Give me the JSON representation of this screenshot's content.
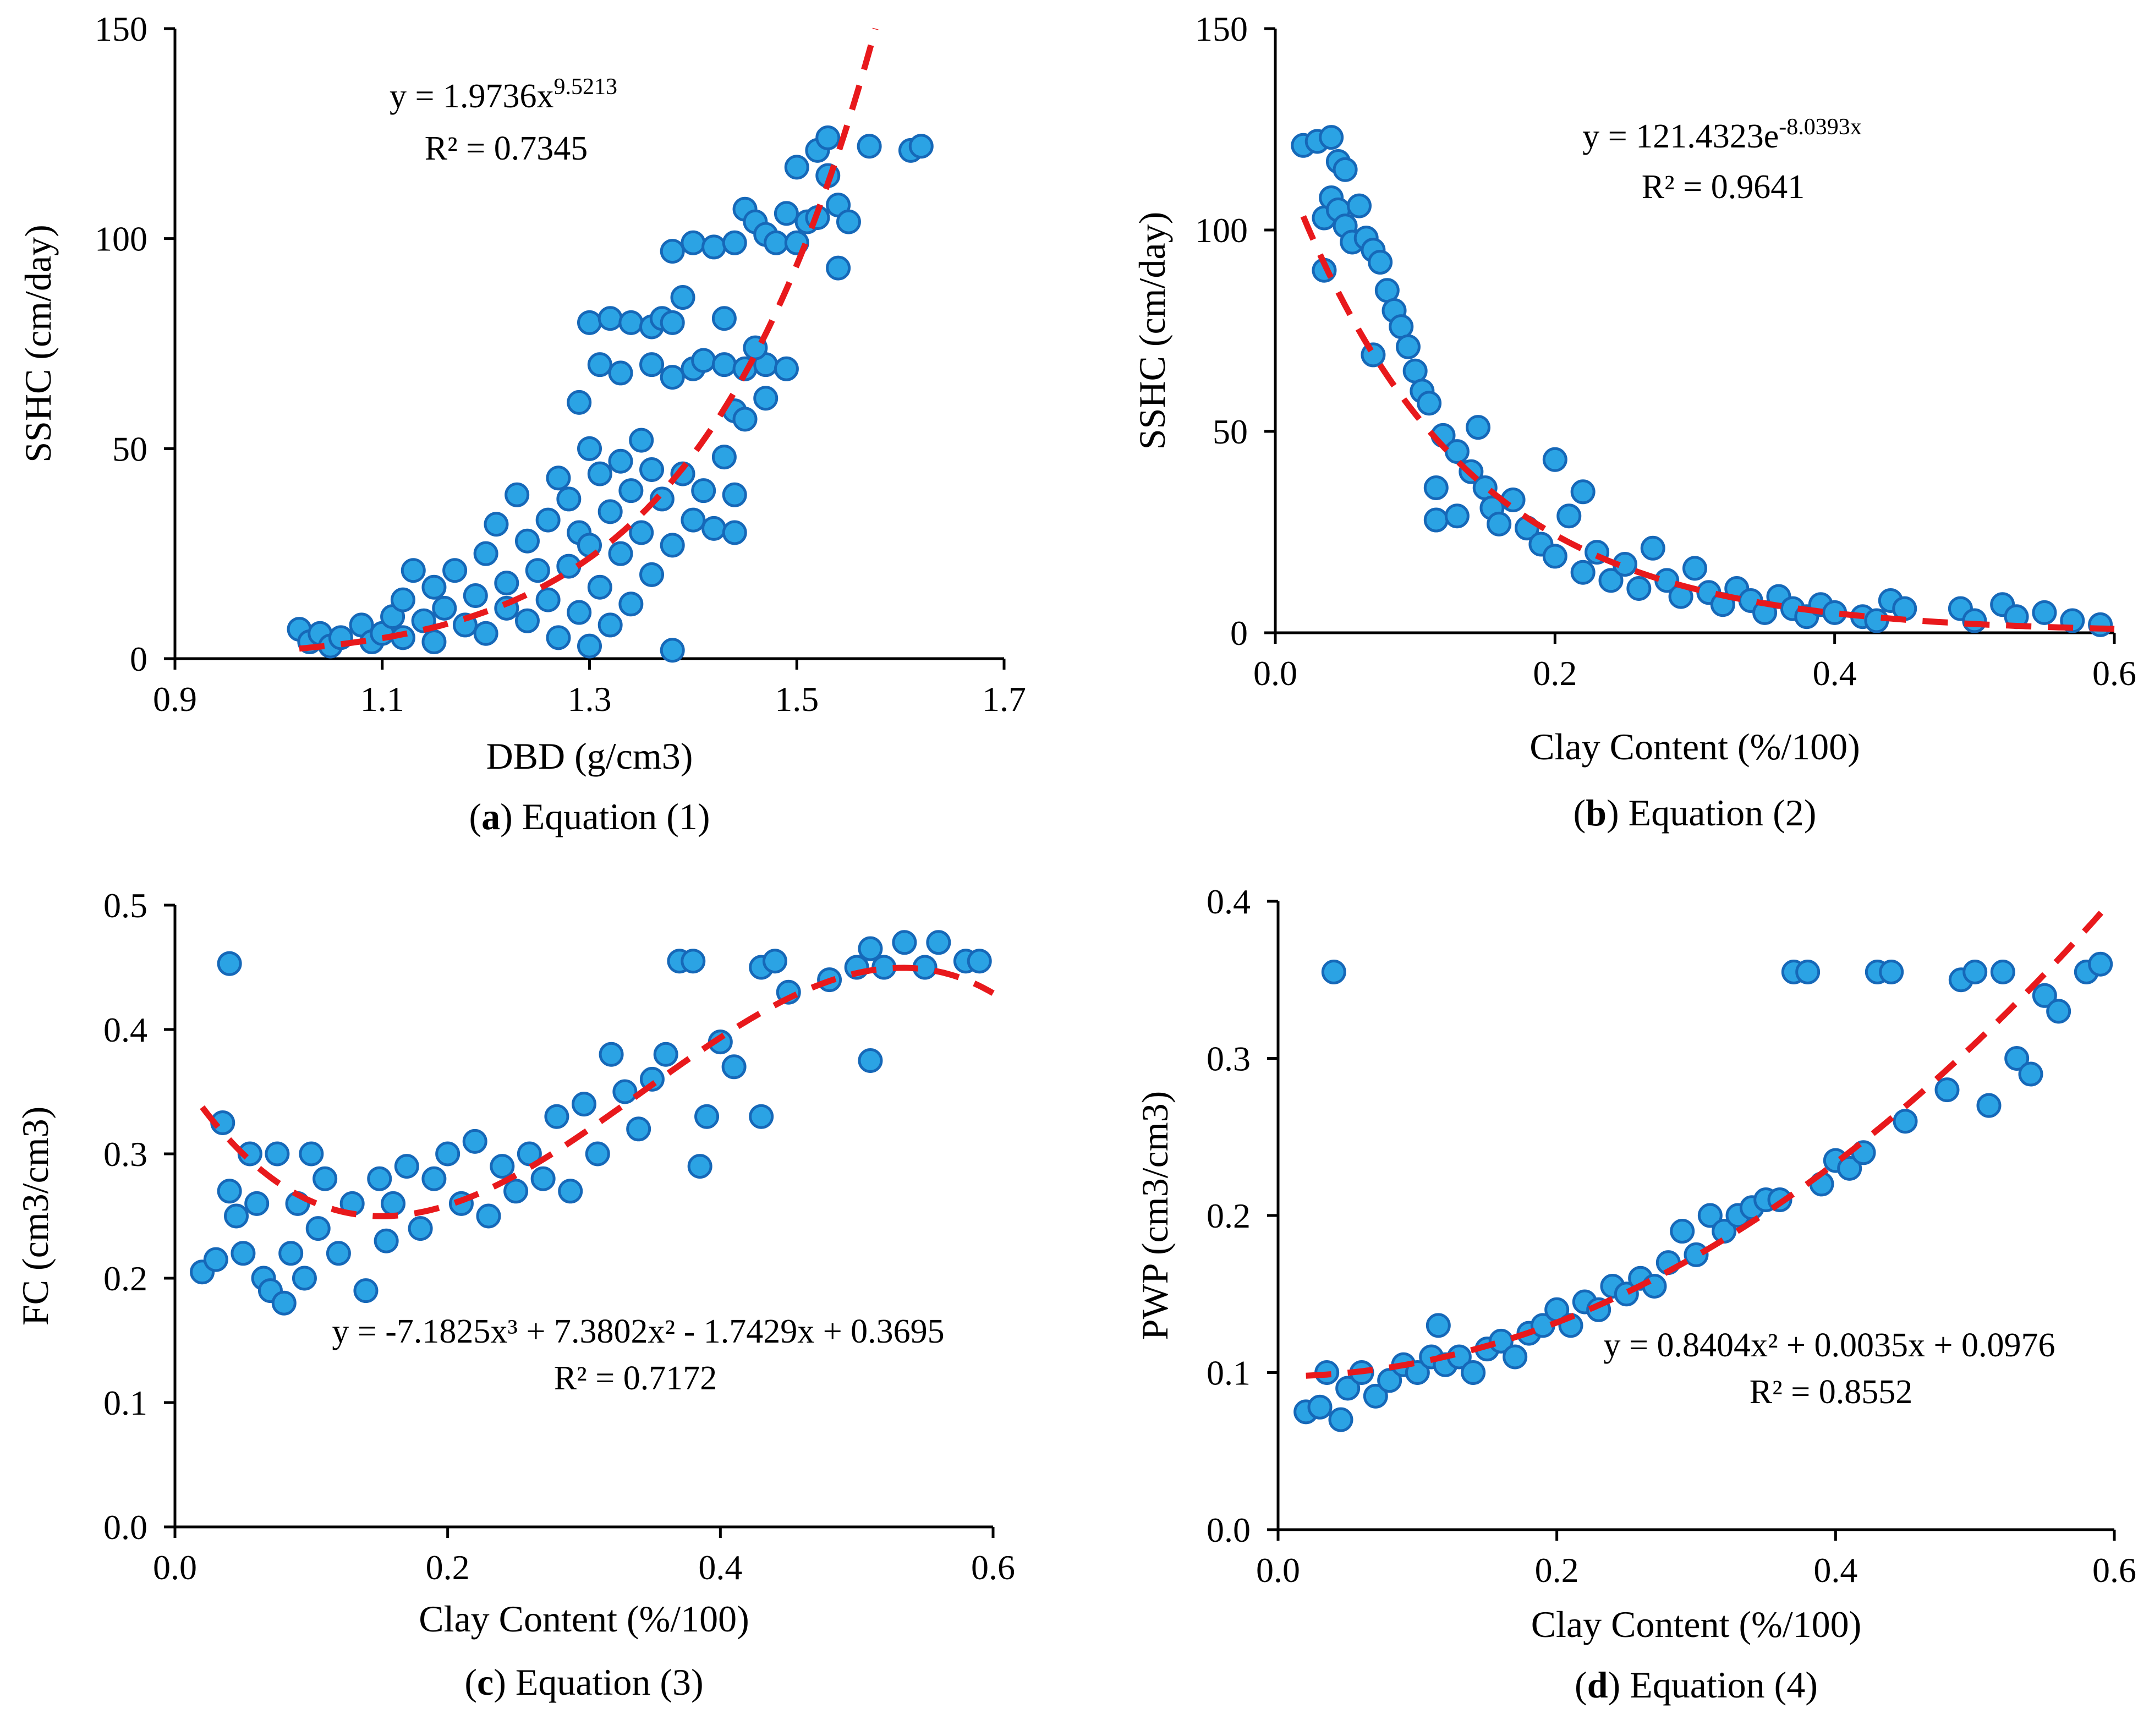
{
  "colors": {
    "point_fill": "#2ba3e4",
    "point_stroke": "#1668b8",
    "trendline": "#e8191c",
    "axis": "#000000"
  },
  "chart_data": [
    {
      "id": "a",
      "type": "scatter",
      "caption_letter": "a",
      "caption_text": ") Equation (1)",
      "xlabel": "DBD (g/cm3)",
      "ylabel": "SSHC (cm/day)",
      "xlim": [
        0.9,
        1.7
      ],
      "ylim": [
        0,
        150
      ],
      "xticks": [
        "0.9",
        "1.1",
        "1.3",
        "1.5",
        "1.7"
      ],
      "yticks": [
        "0",
        "50",
        "100",
        "150"
      ],
      "equation_base": "y = 1.9736x",
      "equation_sup": "9.5213",
      "r2": "R² = 0.7345",
      "trend": {
        "model": "power",
        "a": 1.9736,
        "b": 9.5213,
        "x_range": [
          1.02,
          1.58
        ]
      },
      "points": [
        [
          1.02,
          7
        ],
        [
          1.03,
          4
        ],
        [
          1.04,
          6
        ],
        [
          1.05,
          3
        ],
        [
          1.06,
          5
        ],
        [
          1.08,
          8
        ],
        [
          1.09,
          4
        ],
        [
          1.1,
          6
        ],
        [
          1.11,
          10
        ],
        [
          1.12,
          14
        ],
        [
          1.12,
          5
        ],
        [
          1.13,
          21
        ],
        [
          1.14,
          9
        ],
        [
          1.15,
          17
        ],
        [
          1.15,
          4
        ],
        [
          1.16,
          12
        ],
        [
          1.17,
          21
        ],
        [
          1.18,
          8
        ],
        [
          1.19,
          15
        ],
        [
          1.2,
          25
        ],
        [
          1.2,
          6
        ],
        [
          1.21,
          32
        ],
        [
          1.22,
          18
        ],
        [
          1.22,
          12
        ],
        [
          1.23,
          39
        ],
        [
          1.24,
          28
        ],
        [
          1.24,
          9
        ],
        [
          1.25,
          21
        ],
        [
          1.26,
          33
        ],
        [
          1.26,
          14
        ],
        [
          1.27,
          43
        ],
        [
          1.27,
          5
        ],
        [
          1.28,
          38
        ],
        [
          1.28,
          22
        ],
        [
          1.29,
          30
        ],
        [
          1.29,
          11
        ],
        [
          1.29,
          61
        ],
        [
          1.3,
          50
        ],
        [
          1.3,
          27
        ],
        [
          1.3,
          3
        ],
        [
          1.31,
          44
        ],
        [
          1.31,
          17
        ],
        [
          1.32,
          35
        ],
        [
          1.32,
          8
        ],
        [
          1.33,
          47
        ],
        [
          1.33,
          25
        ],
        [
          1.34,
          40
        ],
        [
          1.34,
          13
        ],
        [
          1.35,
          52
        ],
        [
          1.35,
          30
        ],
        [
          1.36,
          45
        ],
        [
          1.36,
          20
        ],
        [
          1.37,
          38
        ],
        [
          1.38,
          27
        ],
        [
          1.38,
          2
        ],
        [
          1.39,
          44
        ],
        [
          1.4,
          33
        ],
        [
          1.41,
          40
        ],
        [
          1.42,
          31
        ],
        [
          1.43,
          48
        ],
        [
          1.44,
          39
        ],
        [
          1.44,
          30
        ],
        [
          1.3,
          80
        ],
        [
          1.32,
          81
        ],
        [
          1.34,
          80
        ],
        [
          1.36,
          79
        ],
        [
          1.37,
          81
        ],
        [
          1.38,
          80
        ],
        [
          1.39,
          86
        ],
        [
          1.31,
          70
        ],
        [
          1.33,
          68
        ],
        [
          1.36,
          70
        ],
        [
          1.38,
          67
        ],
        [
          1.4,
          69
        ],
        [
          1.41,
          71
        ],
        [
          1.43,
          70
        ],
        [
          1.45,
          69
        ],
        [
          1.47,
          70
        ],
        [
          1.49,
          69
        ],
        [
          1.38,
          97
        ],
        [
          1.4,
          99
        ],
        [
          1.42,
          98
        ],
        [
          1.44,
          99
        ],
        [
          1.45,
          107
        ],
        [
          1.46,
          104
        ],
        [
          1.47,
          101
        ],
        [
          1.48,
          99
        ],
        [
          1.49,
          106
        ],
        [
          1.5,
          117
        ],
        [
          1.5,
          99
        ],
        [
          1.51,
          104
        ],
        [
          1.52,
          105
        ],
        [
          1.52,
          121
        ],
        [
          1.53,
          115
        ],
        [
          1.53,
          124
        ],
        [
          1.54,
          108
        ],
        [
          1.54,
          93
        ],
        [
          1.55,
          104
        ],
        [
          1.57,
          122
        ],
        [
          1.61,
          121
        ],
        [
          1.62,
          122
        ],
        [
          1.44,
          59
        ],
        [
          1.45,
          57
        ],
        [
          1.46,
          74
        ],
        [
          1.47,
          62
        ],
        [
          1.43,
          81
        ]
      ]
    },
    {
      "id": "b",
      "type": "scatter",
      "caption_letter": "b",
      "caption_text": ") Equation (2)",
      "xlabel": "Clay Content (%/100)",
      "ylabel": "SSHC (cm/day)",
      "xlim": [
        0,
        0.6
      ],
      "ylim": [
        0,
        150
      ],
      "xticks": [
        "0.0",
        "0.2",
        "0.4",
        "0.6"
      ],
      "yticks": [
        "0",
        "50",
        "100",
        "150"
      ],
      "equation_base": "y = 121.4323e",
      "equation_sup": "-8.0393x",
      "r2": "R² = 0.9641",
      "trend": {
        "model": "exponential",
        "a": 121.4323,
        "b": -8.0393,
        "x_range": [
          0.02,
          0.6
        ]
      },
      "points": [
        [
          0.02,
          121
        ],
        [
          0.03,
          122
        ],
        [
          0.04,
          123
        ],
        [
          0.045,
          117
        ],
        [
          0.035,
          103
        ],
        [
          0.04,
          108
        ],
        [
          0.045,
          105
        ],
        [
          0.05,
          115
        ],
        [
          0.05,
          101
        ],
        [
          0.055,
          97
        ],
        [
          0.06,
          106
        ],
        [
          0.065,
          98
        ],
        [
          0.07,
          95
        ],
        [
          0.075,
          92
        ],
        [
          0.035,
          90
        ],
        [
          0.08,
          85
        ],
        [
          0.085,
          80
        ],
        [
          0.09,
          76
        ],
        [
          0.095,
          71
        ],
        [
          0.07,
          69
        ],
        [
          0.1,
          65
        ],
        [
          0.105,
          60
        ],
        [
          0.11,
          57
        ],
        [
          0.115,
          36
        ],
        [
          0.115,
          28
        ],
        [
          0.12,
          49
        ],
        [
          0.13,
          45
        ],
        [
          0.13,
          29
        ],
        [
          0.14,
          40
        ],
        [
          0.145,
          51
        ],
        [
          0.15,
          36
        ],
        [
          0.155,
          31
        ],
        [
          0.16,
          27
        ],
        [
          0.17,
          33
        ],
        [
          0.18,
          26
        ],
        [
          0.19,
          22
        ],
        [
          0.2,
          43
        ],
        [
          0.2,
          19
        ],
        [
          0.21,
          29
        ],
        [
          0.22,
          35
        ],
        [
          0.22,
          15
        ],
        [
          0.23,
          20
        ],
        [
          0.24,
          13
        ],
        [
          0.25,
          17
        ],
        [
          0.26,
          11
        ],
        [
          0.27,
          21
        ],
        [
          0.28,
          13
        ],
        [
          0.29,
          9
        ],
        [
          0.3,
          16
        ],
        [
          0.31,
          10
        ],
        [
          0.32,
          7
        ],
        [
          0.33,
          11
        ],
        [
          0.34,
          8
        ],
        [
          0.35,
          5
        ],
        [
          0.36,
          9
        ],
        [
          0.37,
          6
        ],
        [
          0.38,
          4
        ],
        [
          0.39,
          7
        ],
        [
          0.4,
          5
        ],
        [
          0.42,
          4
        ],
        [
          0.43,
          3
        ],
        [
          0.44,
          8
        ],
        [
          0.45,
          6
        ],
        [
          0.49,
          6
        ],
        [
          0.5,
          3
        ],
        [
          0.52,
          7
        ],
        [
          0.53,
          4
        ],
        [
          0.55,
          5
        ],
        [
          0.57,
          3
        ],
        [
          0.59,
          2
        ]
      ]
    },
    {
      "id": "c",
      "type": "scatter",
      "caption_letter": "c",
      "caption_text": ") Equation (3)",
      "xlabel": "Clay Content (%/100)",
      "ylabel": "FC (cm3/cm3)",
      "xlim": [
        0,
        0.6
      ],
      "ylim": [
        0,
        0.5
      ],
      "xticks": [
        "0.0",
        "0.2",
        "0.4",
        "0.6"
      ],
      "yticks": [
        "0.0",
        "0.1",
        "0.2",
        "0.3",
        "0.4",
        "0.5"
      ],
      "equation_base": "y = -7.1825x³ + 7.3802x² - 1.7429x + 0.3695",
      "equation_sup": "",
      "r2": "R² = 0.7172",
      "trend": {
        "model": "poly",
        "coef": [
          0.3695,
          -1.7429,
          7.3802,
          -7.1825
        ],
        "x_range": [
          0.02,
          0.6
        ]
      },
      "points": [
        [
          0.02,
          0.205
        ],
        [
          0.03,
          0.215
        ],
        [
          0.04,
          0.453
        ],
        [
          0.035,
          0.325
        ],
        [
          0.04,
          0.27
        ],
        [
          0.045,
          0.25
        ],
        [
          0.05,
          0.22
        ],
        [
          0.055,
          0.3
        ],
        [
          0.06,
          0.26
        ],
        [
          0.065,
          0.2
        ],
        [
          0.07,
          0.19
        ],
        [
          0.075,
          0.3
        ],
        [
          0.08,
          0.18
        ],
        [
          0.085,
          0.22
        ],
        [
          0.09,
          0.26
        ],
        [
          0.095,
          0.2
        ],
        [
          0.1,
          0.3
        ],
        [
          0.105,
          0.24
        ],
        [
          0.11,
          0.28
        ],
        [
          0.12,
          0.22
        ],
        [
          0.13,
          0.26
        ],
        [
          0.14,
          0.19
        ],
        [
          0.15,
          0.28
        ],
        [
          0.155,
          0.23
        ],
        [
          0.16,
          0.26
        ],
        [
          0.17,
          0.29
        ],
        [
          0.18,
          0.24
        ],
        [
          0.19,
          0.28
        ],
        [
          0.2,
          0.3
        ],
        [
          0.21,
          0.26
        ],
        [
          0.22,
          0.31
        ],
        [
          0.23,
          0.25
        ],
        [
          0.24,
          0.29
        ],
        [
          0.25,
          0.27
        ],
        [
          0.26,
          0.3
        ],
        [
          0.27,
          0.28
        ],
        [
          0.28,
          0.33
        ],
        [
          0.29,
          0.27
        ],
        [
          0.3,
          0.34
        ],
        [
          0.31,
          0.3
        ],
        [
          0.32,
          0.38
        ],
        [
          0.33,
          0.35
        ],
        [
          0.34,
          0.32
        ],
        [
          0.35,
          0.36
        ],
        [
          0.36,
          0.38
        ],
        [
          0.37,
          0.455
        ],
        [
          0.38,
          0.455
        ],
        [
          0.385,
          0.29
        ],
        [
          0.39,
          0.33
        ],
        [
          0.4,
          0.39
        ],
        [
          0.41,
          0.37
        ],
        [
          0.43,
          0.33
        ],
        [
          0.43,
          0.45
        ],
        [
          0.44,
          0.455
        ],
        [
          0.45,
          0.43
        ],
        [
          0.48,
          0.44
        ],
        [
          0.5,
          0.45
        ],
        [
          0.51,
          0.375
        ],
        [
          0.51,
          0.465
        ],
        [
          0.52,
          0.45
        ],
        [
          0.535,
          0.47
        ],
        [
          0.55,
          0.45
        ],
        [
          0.56,
          0.47
        ],
        [
          0.58,
          0.455
        ],
        [
          0.59,
          0.455
        ]
      ]
    },
    {
      "id": "d",
      "type": "scatter",
      "caption_letter": "d",
      "caption_text": ") Equation (4)",
      "xlabel": "Clay Content (%/100)",
      "ylabel": "PWP (cm3/cm3)",
      "xlim": [
        0,
        0.6
      ],
      "ylim": [
        0,
        0.4
      ],
      "xticks": [
        "0.0",
        "0.2",
        "0.4",
        "0.6"
      ],
      "yticks": [
        "0.0",
        "0.1",
        "0.2",
        "0.3",
        "0.4"
      ],
      "equation_base": "y = 0.8404x² + 0.0035x + 0.0976",
      "equation_sup": "",
      "r2": "R² = 0.8552",
      "trend": {
        "model": "poly",
        "coef": [
          0.0976,
          0.0035,
          0.8404
        ],
        "x_range": [
          0.02,
          0.6
        ]
      },
      "points": [
        [
          0.02,
          0.075
        ],
        [
          0.03,
          0.078
        ],
        [
          0.035,
          0.1
        ],
        [
          0.04,
          0.355
        ],
        [
          0.045,
          0.07
        ],
        [
          0.05,
          0.09
        ],
        [
          0.06,
          0.1
        ],
        [
          0.07,
          0.085
        ],
        [
          0.08,
          0.095
        ],
        [
          0.09,
          0.105
        ],
        [
          0.1,
          0.1
        ],
        [
          0.11,
          0.11
        ],
        [
          0.115,
          0.13
        ],
        [
          0.12,
          0.105
        ],
        [
          0.13,
          0.11
        ],
        [
          0.14,
          0.1
        ],
        [
          0.15,
          0.115
        ],
        [
          0.16,
          0.12
        ],
        [
          0.17,
          0.11
        ],
        [
          0.18,
          0.125
        ],
        [
          0.19,
          0.13
        ],
        [
          0.2,
          0.14
        ],
        [
          0.21,
          0.13
        ],
        [
          0.22,
          0.145
        ],
        [
          0.23,
          0.14
        ],
        [
          0.24,
          0.155
        ],
        [
          0.25,
          0.15
        ],
        [
          0.26,
          0.16
        ],
        [
          0.27,
          0.155
        ],
        [
          0.28,
          0.17
        ],
        [
          0.29,
          0.19
        ],
        [
          0.3,
          0.175
        ],
        [
          0.31,
          0.2
        ],
        [
          0.32,
          0.19
        ],
        [
          0.33,
          0.2
        ],
        [
          0.34,
          0.205
        ],
        [
          0.35,
          0.21
        ],
        [
          0.36,
          0.21
        ],
        [
          0.37,
          0.355
        ],
        [
          0.38,
          0.355
        ],
        [
          0.39,
          0.22
        ],
        [
          0.4,
          0.235
        ],
        [
          0.41,
          0.23
        ],
        [
          0.42,
          0.24
        ],
        [
          0.43,
          0.355
        ],
        [
          0.44,
          0.355
        ],
        [
          0.45,
          0.26
        ],
        [
          0.48,
          0.28
        ],
        [
          0.49,
          0.35
        ],
        [
          0.5,
          0.355
        ],
        [
          0.51,
          0.27
        ],
        [
          0.52,
          0.355
        ],
        [
          0.53,
          0.3
        ],
        [
          0.54,
          0.29
        ],
        [
          0.55,
          0.34
        ],
        [
          0.56,
          0.33
        ],
        [
          0.58,
          0.355
        ],
        [
          0.59,
          0.36
        ]
      ]
    }
  ]
}
